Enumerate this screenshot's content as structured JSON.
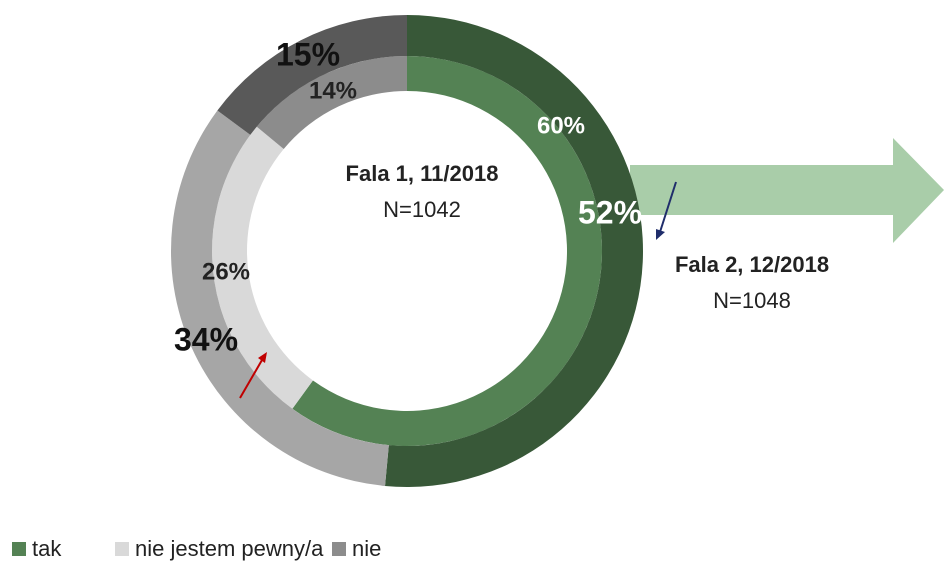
{
  "chart_data": {
    "type": "donut",
    "categories": [
      "tak",
      "nie jestem pewny/a",
      "nie"
    ],
    "colors": [
      "#548254",
      "#d9d9d9",
      "#8c8c8c"
    ],
    "rings": [
      {
        "title": "Fala 1, 11/2018",
        "subtitle": "N=1042",
        "values": [
          60,
          26,
          14
        ],
        "value_labels": [
          "60%",
          "26%",
          "14%"
        ],
        "colors": [
          "#548254",
          "#d9d9d9",
          "#8c8c8c"
        ]
      },
      {
        "title": "Fala 2, 12/2018",
        "subtitle": "N=1048",
        "values": [
          52,
          34,
          15
        ],
        "value_labels": [
          "52%",
          "34%",
          "15%"
        ],
        "colors": [
          "#385838",
          "#a6a6a6",
          "#595959"
        ]
      }
    ],
    "legend": "bottom-left"
  }
}
